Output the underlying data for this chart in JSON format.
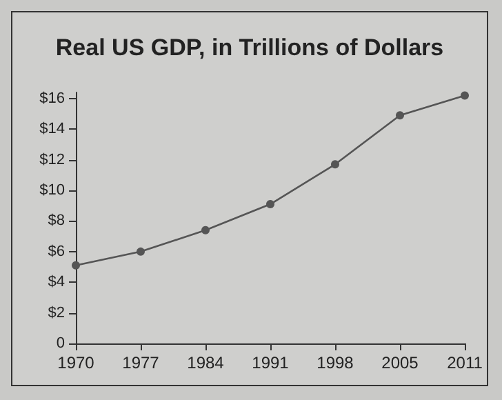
{
  "chart_data": {
    "type": "line",
    "title": "Real US GDP, in Trillions of Dollars",
    "categories": [
      "1970",
      "1977",
      "1984",
      "1991",
      "1998",
      "2005",
      "2011"
    ],
    "series": [
      {
        "color": "#555555",
        "values": [
          5.1,
          6.0,
          7.4,
          9.1,
          11.7,
          14.9,
          16.2
        ]
      }
    ],
    "ylim": [
      0,
      16.4
    ],
    "yticks": [
      {
        "value": 0,
        "label": "0"
      },
      {
        "value": 2,
        "label": "$2"
      },
      {
        "value": 4,
        "label": "$4"
      },
      {
        "value": 6,
        "label": "$6"
      },
      {
        "value": 8,
        "label": "$8"
      },
      {
        "value": 10,
        "label": "$10"
      },
      {
        "value": 12,
        "label": "$12"
      },
      {
        "value": 14,
        "label": "$14"
      },
      {
        "value": 16,
        "label": "$16"
      }
    ],
    "grid": false,
    "marker": "circle",
    "line_style": "solid"
  }
}
